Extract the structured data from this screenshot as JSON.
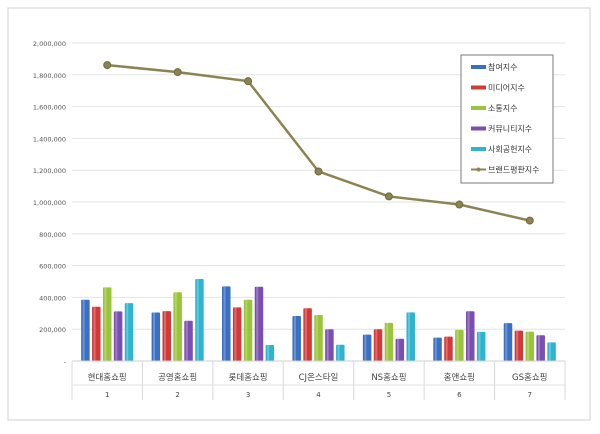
{
  "chart_data": {
    "type": "bar+line",
    "categories": [
      "현대홈쇼핑",
      "공영홈쇼핑",
      "롯데홈쇼핑",
      "CJ온스타일",
      "NS홈쇼핑",
      "홈앤쇼핑",
      "GS홈쇼핑"
    ],
    "category_ranks": [
      "1",
      "2",
      "3",
      "4",
      "5",
      "6",
      "7"
    ],
    "ylim": [
      0,
      2000000
    ],
    "yticks": [
      "-",
      "200,000",
      "400,000",
      "600,000",
      "800,000",
      "1,000,000",
      "1,200,000",
      "1,400,000",
      "1,600,000",
      "1,800,000",
      "2,000,000"
    ],
    "grid": true,
    "legend_position": "top-right",
    "series": [
      {
        "name": "참여지수",
        "type": "bar",
        "color": "#3a6fc4",
        "values": [
          385000,
          305000,
          469000,
          283000,
          166000,
          147000,
          238000
        ]
      },
      {
        "name": "미디어지수",
        "type": "bar",
        "color": "#d23a3a",
        "values": [
          341000,
          314000,
          337000,
          332000,
          200000,
          153000,
          191000
        ]
      },
      {
        "name": "소통지수",
        "type": "bar",
        "color": "#9ac43a",
        "values": [
          463000,
          432000,
          385000,
          289000,
          240000,
          196000,
          185000
        ]
      },
      {
        "name": "커뮤니티지수",
        "type": "bar",
        "color": "#7b4fb0",
        "values": [
          312000,
          253000,
          467000,
          200000,
          140000,
          313000,
          162000
        ]
      },
      {
        "name": "사회공헌지수",
        "type": "bar",
        "color": "#2fb4cf",
        "values": [
          364000,
          516000,
          101000,
          102000,
          306000,
          183000,
          117000
        ]
      },
      {
        "name": "브랜드평판지수",
        "type": "line",
        "color": "#8c8450",
        "values": [
          1861000,
          1817000,
          1760000,
          1192000,
          1035000,
          984000,
          883000
        ]
      }
    ]
  }
}
